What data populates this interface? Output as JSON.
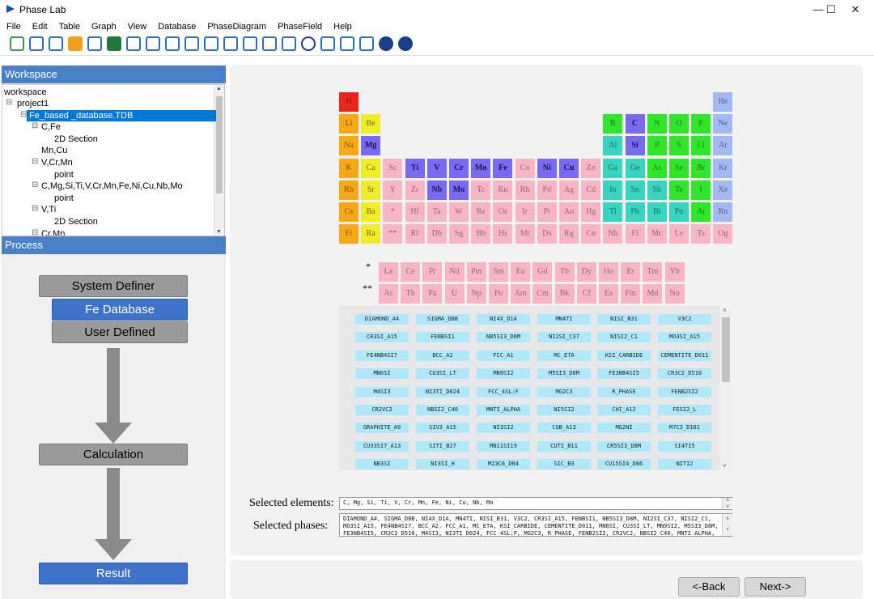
{
  "window": {
    "title": "Phase Lab",
    "minimize": "—",
    "maximize": "☐",
    "close": "✕"
  },
  "menu": [
    "File",
    "Edit",
    "Table",
    "Graph",
    "View",
    "Database",
    "PhaseDiagram",
    "PhaseField",
    "Help"
  ],
  "toolbar_icons": [
    "new-project-icon",
    "cut-icon",
    "copy-icon",
    "paste-icon",
    "delete-icon",
    "excel-icon",
    "file-icon",
    "txt-icon",
    "comment-icon",
    "pointer-icon",
    "text-icon",
    "zoom-out-icon",
    "line-chart-icon",
    "sliders-icon",
    "download-icon",
    "target-icon",
    "line-tool-icon",
    "area-chart-icon",
    "triangle-icon",
    "help-icon",
    "info-icon"
  ],
  "workspace": {
    "header": "Workspace",
    "root": "workspace",
    "items": [
      {
        "label": "project1",
        "level": 1,
        "exp": "⊟"
      },
      {
        "label": "Fe_based _database.TDB",
        "level": 2,
        "exp": "⊟",
        "selected": true
      },
      {
        "label": "C,Fe",
        "level": 3,
        "exp": "⊟"
      },
      {
        "label": "2D Section",
        "level": 4,
        "exp": ""
      },
      {
        "label": "Mn,Cu",
        "level": 3,
        "exp": ""
      },
      {
        "label": "V,Cr,Mn",
        "level": 3,
        "exp": "⊟"
      },
      {
        "label": "point",
        "level": 4,
        "exp": ""
      },
      {
        "label": "C,Mg,Si,Ti,V,Cr,Mn,Fe,Ni,Cu,Nb,Mo",
        "level": 3,
        "exp": "⊟"
      },
      {
        "label": "point",
        "level": 4,
        "exp": ""
      },
      {
        "label": "V,Ti",
        "level": 3,
        "exp": "⊟"
      },
      {
        "label": "2D Section",
        "level": 4,
        "exp": ""
      },
      {
        "label": "Cr,Mn",
        "level": 3,
        "exp": "⊟"
      }
    ]
  },
  "process": {
    "header": "Process",
    "system_definer": "System Definer",
    "fe_database": "Fe Database",
    "user_defined": "User Defined",
    "calculation": "Calculation",
    "result": "Result"
  },
  "periodic_table": {
    "main": [
      [
        [
          "H",
          "h"
        ],
        null,
        null,
        null,
        null,
        null,
        null,
        null,
        null,
        null,
        null,
        null,
        null,
        null,
        null,
        null,
        null,
        [
          "He",
          "noble"
        ]
      ],
      [
        [
          "Li",
          "alk"
        ],
        [
          "Be",
          "ae"
        ],
        null,
        null,
        null,
        null,
        null,
        null,
        null,
        null,
        null,
        null,
        [
          "B",
          "green"
        ],
        [
          "C",
          "sel"
        ],
        [
          "N",
          "green"
        ],
        [
          "O",
          "green"
        ],
        [
          "F",
          "green"
        ],
        [
          "Ne",
          "noble"
        ]
      ],
      [
        [
          "Na",
          "alk"
        ],
        [
          "Mg",
          "sel"
        ],
        null,
        null,
        null,
        null,
        null,
        null,
        null,
        null,
        null,
        null,
        [
          "Al",
          "cyan"
        ],
        [
          "Si",
          "sel"
        ],
        [
          "P",
          "green"
        ],
        [
          "S",
          "green"
        ],
        [
          "Cl",
          "green"
        ],
        [
          "Ar",
          "noble"
        ]
      ],
      [
        [
          "K",
          "alk"
        ],
        [
          "Ca",
          "ae"
        ],
        [
          "Sc",
          "tm"
        ],
        [
          "Ti",
          "sel"
        ],
        [
          "V",
          "sel"
        ],
        [
          "Cr",
          "sel"
        ],
        [
          "Mn",
          "sel"
        ],
        [
          "Fe",
          "sel"
        ],
        [
          "Co",
          "tm"
        ],
        [
          "Ni",
          "sel"
        ],
        [
          "Cu",
          "sel"
        ],
        [
          "Zn",
          "tm"
        ],
        [
          "Ga",
          "cyan"
        ],
        [
          "Ge",
          "cyan"
        ],
        [
          "As",
          "green"
        ],
        [
          "Se",
          "green"
        ],
        [
          "Br",
          "green"
        ],
        [
          "Kr",
          "noble"
        ]
      ],
      [
        [
          "Rb",
          "alk"
        ],
        [
          "Sr",
          "ae"
        ],
        [
          "Y",
          "tm"
        ],
        [
          "Zr",
          "tm"
        ],
        [
          "Nb",
          "sel"
        ],
        [
          "Mo",
          "sel"
        ],
        [
          "Tc",
          "tm"
        ],
        [
          "Ru",
          "tm"
        ],
        [
          "Rh",
          "tm"
        ],
        [
          "Pd",
          "tm"
        ],
        [
          "Ag",
          "tm"
        ],
        [
          "Cd",
          "tm"
        ],
        [
          "In",
          "cyan"
        ],
        [
          "Sn",
          "cyan"
        ],
        [
          "Sb",
          "cyan"
        ],
        [
          "Te",
          "green"
        ],
        [
          "I",
          "green"
        ],
        [
          "Xe",
          "noble"
        ]
      ],
      [
        [
          "Cs",
          "alk"
        ],
        [
          "Ba",
          "ae"
        ],
        [
          "*",
          "tm"
        ],
        [
          "Hf",
          "tm"
        ],
        [
          "Ta",
          "tm"
        ],
        [
          "W",
          "tm"
        ],
        [
          "Re",
          "tm"
        ],
        [
          "Os",
          "tm"
        ],
        [
          "Ir",
          "tm"
        ],
        [
          "Pt",
          "tm"
        ],
        [
          "Au",
          "tm"
        ],
        [
          "Hg",
          "tm"
        ],
        [
          "Tl",
          "cyan"
        ],
        [
          "Pb",
          "cyan"
        ],
        [
          "Bi",
          "cyan"
        ],
        [
          "Po",
          "cyan"
        ],
        [
          "At",
          "green"
        ],
        [
          "Rn",
          "noble"
        ]
      ],
      [
        [
          "Fr",
          "alk"
        ],
        [
          "Ra",
          "ae"
        ],
        [
          "**",
          "tm"
        ],
        [
          "Rf",
          "tm"
        ],
        [
          "Db",
          "tm"
        ],
        [
          "Sg",
          "tm"
        ],
        [
          "Bh",
          "tm"
        ],
        [
          "Hs",
          "tm"
        ],
        [
          "Mt",
          "tm"
        ],
        [
          "Ds",
          "tm"
        ],
        [
          "Rg",
          "tm"
        ],
        [
          "Cn",
          "tm"
        ],
        [
          "Nh",
          "tm"
        ],
        [
          "Fl",
          "tm"
        ],
        [
          "Mc",
          "tm"
        ],
        [
          "Lv",
          "tm"
        ],
        [
          "Ts",
          "tm"
        ],
        [
          "Og",
          "tm"
        ]
      ]
    ],
    "lanthanide_marker": "*",
    "actinide_marker": "**",
    "lanthanides": [
      "La",
      "Ce",
      "Pr",
      "Nd",
      "Pm",
      "Sm",
      "Eu",
      "Gd",
      "Tb",
      "Dy",
      "Ho",
      "Er",
      "Tm",
      "Yb"
    ],
    "actinides": [
      "Ac",
      "Th",
      "Pa",
      "U",
      "Np",
      "Pu",
      "Am",
      "Cm",
      "Bk",
      "Cf",
      "Es",
      "Fm",
      "Md",
      "No"
    ]
  },
  "phases": [
    "DIAMOND_A4",
    "SIGMA_D8B",
    "NI4X_D1A",
    "MN4TI",
    "NISI_B31",
    "V3C2",
    "CR3SI_A15",
    "FENBSI1",
    "NB5SI3_D8M",
    "NI2SI_C37",
    "NISI2_C1",
    "MO3SI_A15",
    "FE4NB4SI7",
    "BCC_A2",
    "FCC_A1",
    "MC_ETA",
    "KSI_CARBIDE",
    "CEMENTITE_D011",
    "MN6SI",
    "CU3SI_LT",
    "MN9SI2",
    "M5SI3_D8M",
    "FE3NB4SI5",
    "CR3C2_D510",
    "M4SI3",
    "NI3TI_D024",
    "FCC_4SL:F",
    "MG2C3",
    "R_PHASE",
    "FENB2SI2",
    "CR2VC2",
    "NBSI2_C40",
    "MNTI_ALPHA",
    "NI5SI2",
    "CHI_A12",
    "FESI2_L",
    "GRAPHITE_A9",
    "SIV3_A15",
    "NI3SI2",
    "CUB_A13",
    "MG2NI",
    "M7C3_D101",
    "CU33SI7_A13",
    "SITI_B27",
    "MN11SI19",
    "CUTI_B11",
    "CR5SI3_D8M",
    "SI4TI5",
    "NB3SI",
    "NI3SI_H",
    "M23C6_D84",
    "SIC_B3",
    "CU15SI4_D86",
    "NITI2"
  ],
  "selection": {
    "elements_label": "Selected elements:",
    "elements_value": "C, Mg, Si, Ti, V, Cr, Mn, Fe, Ni, Cu, Nb, Mo",
    "phases_label": "Selected phases:",
    "phases_value": "DIAMOND_A4, SIGMA_D8B, NI4X_D1A, MN4TI, NISI_B31, V3C2, CR3SI_A15, FENBSI1, NB5SI3_D8M, NI2SI_C37, NISI2_C1, MO3SI_A15, FE4NB4SI7, BCC_A2, FCC_A1, MC_ETA, KSI_CARBIDE, CEMENTITE_D011, MN6SI, CU3SI_LT, MN9SI2, M5SI3_D8M, FE3NB4SI5, CR3C2_D510, M4SI3, NI3TI_D024, FCC_4SL:F, MG2C3, R_PHASE, FENB2SI2, CR2VC2, NBSI2_C40, MNTI_ALPHA, NI5SI2"
  },
  "nav": {
    "back": "<-Back",
    "next": "Next->"
  }
}
